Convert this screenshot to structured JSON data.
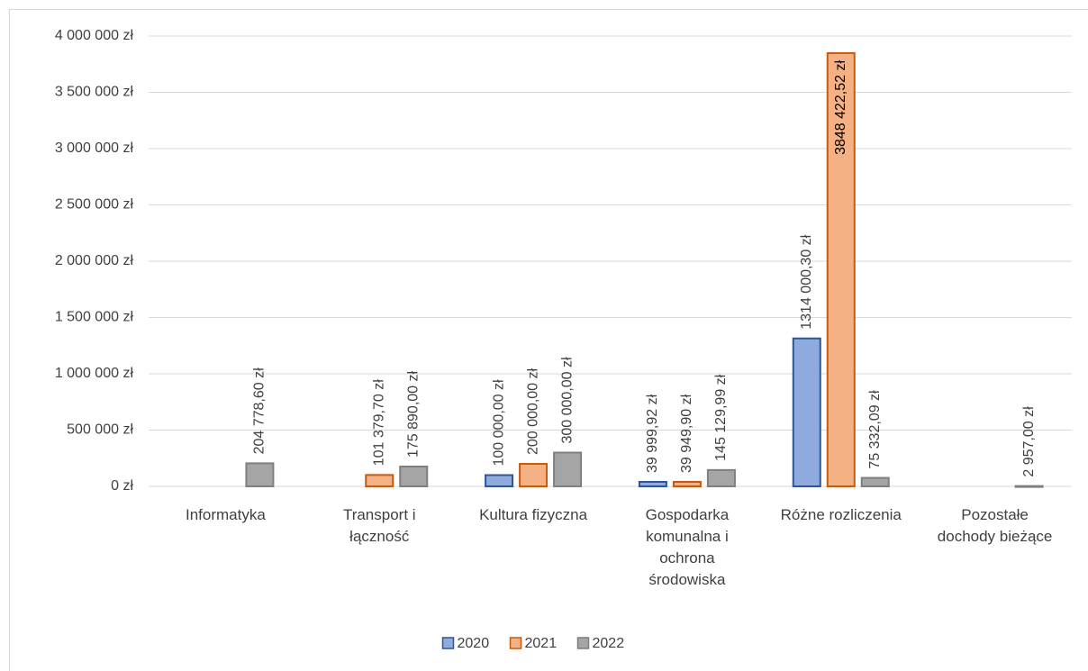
{
  "chart_data": {
    "type": "bar",
    "categories": [
      "Informatyka",
      "Transport i łączność",
      "Kultura fizyczna",
      "Gospodarka komunalna i ochrona środowiska",
      "Różne rozliczenia",
      "Pozostałe dochody bieżące"
    ],
    "series": [
      {
        "name": "2020",
        "color": "#8faadc",
        "edge": "#2f5597",
        "values": [
          null,
          null,
          100000.0,
          39999.92,
          1314000.3,
          null
        ],
        "value_labels": [
          null,
          null,
          "100 000,00 zł",
          "39 999,92 zł",
          "1314 000,30 zł",
          null
        ]
      },
      {
        "name": "2021",
        "color": "#f4b183",
        "edge": "#c55a11",
        "values": [
          null,
          101379.7,
          200000.0,
          39949.9,
          3848422.52,
          null
        ],
        "value_labels": [
          null,
          "101 379,70 zł",
          "200 000,00 zł",
          "39 949,90 zł",
          "3848 422,52 zł",
          null
        ]
      },
      {
        "name": "2022",
        "color": "#a5a5a5",
        "edge": "#7f7f7f",
        "values": [
          204778.6,
          175890.0,
          300000.0,
          145129.99,
          75332.09,
          2957.0
        ],
        "value_labels": [
          "204 778,60 zł",
          "175 890,00 zł",
          "300 000,00 zł",
          "145 129,99 zł",
          "75 332,09 zł",
          "2 957,00 zł"
        ]
      }
    ],
    "ylim": [
      0,
      4000000
    ],
    "yticks": [
      {
        "value": 0,
        "label": "0 zł"
      },
      {
        "value": 500000,
        "label": "500 000 zł"
      },
      {
        "value": 1000000,
        "label": "1 000 000 zł"
      },
      {
        "value": 1500000,
        "label": "1 500 000 zł"
      },
      {
        "value": 2000000,
        "label": "2 000 000 zł"
      },
      {
        "value": 2500000,
        "label": "2 500 000 zł"
      },
      {
        "value": 3000000,
        "label": "3 000 000 zł"
      },
      {
        "value": 3500000,
        "label": "3 500 000 zł"
      },
      {
        "value": 4000000,
        "label": "4 000 000 zł"
      }
    ],
    "grid": true,
    "legend": "bottom"
  }
}
